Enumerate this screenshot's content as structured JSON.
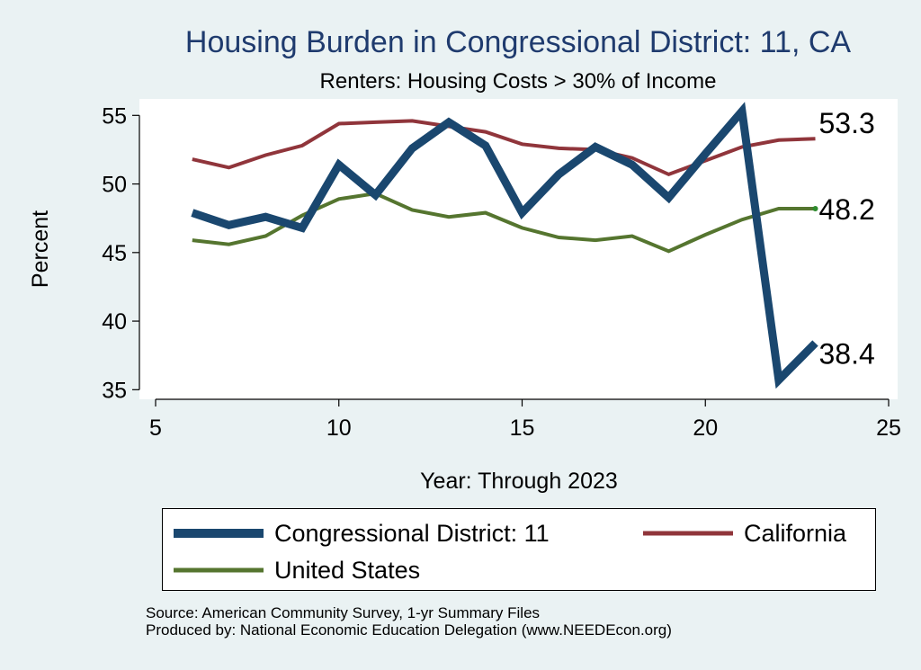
{
  "colors": {
    "background": "#eaf2f3",
    "plot_background": "#ffffff",
    "title": "#1f3b6e",
    "district": "#1a476f",
    "california": "#90353b",
    "united_states": "#55752f"
  },
  "chart_data": {
    "type": "line",
    "title": "Housing Burden in Congressional District:  11, CA",
    "subtitle": "Renters: Housing Costs > 30% of Income",
    "xlabel": "Year: Through 2023",
    "ylabel": "Percent",
    "xlim": [
      5,
      25
    ],
    "ylim": [
      34.3,
      56.2
    ],
    "xticks": [
      5,
      10,
      15,
      20,
      25
    ],
    "yticks": [
      35,
      40,
      45,
      50,
      55
    ],
    "grid": false,
    "x": [
      6,
      7,
      8,
      9,
      10,
      11,
      12,
      13,
      14,
      15,
      16,
      17,
      18,
      19,
      20,
      21,
      22,
      23
    ],
    "series": [
      {
        "name": "Congressional District:  11",
        "key": "district",
        "values": [
          47.9,
          47.0,
          47.6,
          46.8,
          51.4,
          49.2,
          52.6,
          54.5,
          52.8,
          47.9,
          50.7,
          52.7,
          51.4,
          49.0,
          52.2,
          55.3,
          35.7,
          38.4
        ],
        "end_label": "38.4"
      },
      {
        "name": "California",
        "key": "california",
        "values": [
          51.8,
          51.2,
          52.1,
          52.8,
          54.4,
          54.5,
          54.6,
          54.2,
          53.8,
          52.9,
          52.6,
          52.5,
          51.9,
          50.7,
          51.7,
          52.7,
          53.2,
          53.3
        ],
        "end_label": "53.3"
      },
      {
        "name": "United States",
        "key": "united_states",
        "values": [
          45.9,
          45.6,
          46.2,
          47.7,
          48.9,
          49.3,
          48.1,
          47.6,
          47.9,
          46.8,
          46.1,
          45.9,
          46.2,
          45.1,
          46.3,
          47.4,
          48.2,
          48.2
        ],
        "end_label": "48.2"
      }
    ],
    "legend": {
      "placement": "bottom",
      "entries": [
        "Congressional District:  11",
        "California",
        "United States"
      ]
    }
  },
  "footer": {
    "source": "Source: American Community Survey, 1-yr Summary Files",
    "produced_by": "Produced by: National Economic Education Delegation (www.NEEDEcon.org)"
  }
}
